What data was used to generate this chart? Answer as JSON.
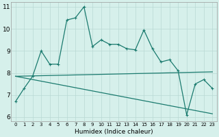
{
  "xlabel": "Humidex (Indice chaleur)",
  "bg_color": "#d6f0eb",
  "grid_color": "#b8d8d3",
  "line_color": "#1a7a6e",
  "xlim": [
    -0.5,
    23.5
  ],
  "ylim": [
    5.8,
    11.2
  ],
  "yticks": [
    6,
    7,
    8,
    9,
    10,
    11
  ],
  "xticks": [
    0,
    1,
    2,
    3,
    4,
    5,
    6,
    7,
    8,
    9,
    10,
    11,
    12,
    13,
    14,
    15,
    16,
    17,
    18,
    19,
    20,
    21,
    22,
    23
  ],
  "series1_x": [
    0,
    1,
    2,
    3,
    4,
    5,
    6,
    7,
    8,
    9,
    10,
    11,
    12,
    13,
    14,
    15,
    16,
    17,
    18,
    19,
    20,
    21,
    22,
    23
  ],
  "series1_y": [
    6.7,
    7.3,
    7.85,
    9.0,
    8.4,
    8.4,
    10.4,
    10.5,
    11.0,
    9.2,
    9.5,
    9.3,
    9.3,
    9.1,
    9.05,
    9.95,
    9.1,
    8.5,
    8.6,
    8.1,
    6.1,
    7.5,
    7.7,
    7.3
  ],
  "series2_x": [
    0,
    23
  ],
  "series2_y": [
    7.85,
    8.05
  ],
  "series3_x": [
    0,
    23
  ],
  "series3_y": [
    7.85,
    6.15
  ],
  "marker_size": 3.5,
  "linewidth": 0.9,
  "xlabel_fontsize": 6.5,
  "tick_fontsize_x": 5.0,
  "tick_fontsize_y": 6.5
}
